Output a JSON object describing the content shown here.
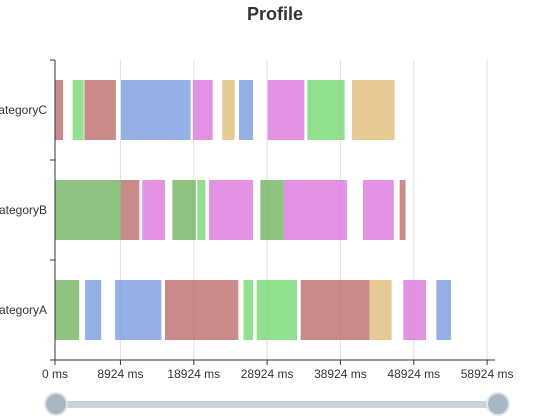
{
  "chart_data": {
    "type": "timeline",
    "title": "Profile",
    "xlabel": "",
    "ylabel": "",
    "xlim": [
      0,
      60000
    ],
    "x_ticks": [
      0,
      8924,
      18924,
      28924,
      38924,
      48924,
      58924
    ],
    "x_tick_labels": [
      "0 ms",
      "8924 ms",
      "18924 ms",
      "28924 ms",
      "38924 ms",
      "48924 ms",
      "58924 ms"
    ],
    "categories": [
      "categoryA",
      "categoryB",
      "categoryC"
    ],
    "colors": [
      "#7b9ce1",
      "#bd6d6c",
      "#75d874",
      "#e0bc78",
      "#dc77dc",
      "#72b362"
    ],
    "bars": [
      {
        "category": "categoryA",
        "start": 0,
        "end": 3300,
        "color": "#72b362"
      },
      {
        "category": "categoryA",
        "start": 4100,
        "end": 6300,
        "color": "#7b9ce1"
      },
      {
        "category": "categoryA",
        "start": 8200,
        "end": 14500,
        "color": "#7b9ce1"
      },
      {
        "category": "categoryA",
        "start": 15000,
        "end": 25000,
        "color": "#bd6d6c"
      },
      {
        "category": "categoryA",
        "start": 25700,
        "end": 27000,
        "color": "#75d874"
      },
      {
        "category": "categoryA",
        "start": 27500,
        "end": 33000,
        "color": "#75d874"
      },
      {
        "category": "categoryA",
        "start": 33500,
        "end": 42900,
        "color": "#bd6d6c"
      },
      {
        "category": "categoryA",
        "start": 42900,
        "end": 45900,
        "color": "#e0bc78"
      },
      {
        "category": "categoryA",
        "start": 47500,
        "end": 50600,
        "color": "#dc77dc"
      },
      {
        "category": "categoryA",
        "start": 52000,
        "end": 54000,
        "color": "#7b9ce1"
      },
      {
        "category": "categoryB",
        "start": 0,
        "end": 9000,
        "color": "#72b362"
      },
      {
        "category": "categoryB",
        "start": 9000,
        "end": 11500,
        "color": "#bd6d6c"
      },
      {
        "category": "categoryB",
        "start": 11900,
        "end": 15000,
        "color": "#dc77dc"
      },
      {
        "category": "categoryB",
        "start": 16000,
        "end": 19200,
        "color": "#72b362"
      },
      {
        "category": "categoryB",
        "start": 19400,
        "end": 20500,
        "color": "#75d874"
      },
      {
        "category": "categoryB",
        "start": 21000,
        "end": 27000,
        "color": "#dc77dc"
      },
      {
        "category": "categoryB",
        "start": 28000,
        "end": 31200,
        "color": "#72b362"
      },
      {
        "category": "categoryB",
        "start": 31200,
        "end": 39800,
        "color": "#dc77dc"
      },
      {
        "category": "categoryB",
        "start": 42000,
        "end": 46200,
        "color": "#dc77dc"
      },
      {
        "category": "categoryB",
        "start": 47000,
        "end": 47800,
        "color": "#bd6d6c"
      },
      {
        "category": "categoryC",
        "start": 0,
        "end": 1100,
        "color": "#bd6d6c"
      },
      {
        "category": "categoryC",
        "start": 2400,
        "end": 3900,
        "color": "#75d874"
      },
      {
        "category": "categoryC",
        "start": 4000,
        "end": 8300,
        "color": "#bd6d6c"
      },
      {
        "category": "categoryC",
        "start": 9000,
        "end": 18500,
        "color": "#7b9ce1"
      },
      {
        "category": "categoryC",
        "start": 18800,
        "end": 21500,
        "color": "#dc77dc"
      },
      {
        "category": "categoryC",
        "start": 22800,
        "end": 24500,
        "color": "#e0bc78"
      },
      {
        "category": "categoryC",
        "start": 25100,
        "end": 27000,
        "color": "#7b9ce1"
      },
      {
        "category": "categoryC",
        "start": 29000,
        "end": 34000,
        "color": "#dc77dc"
      },
      {
        "category": "categoryC",
        "start": 34400,
        "end": 39500,
        "color": "#75d874"
      },
      {
        "category": "categoryC",
        "start": 40500,
        "end": 46300,
        "color": "#e0bc78"
      }
    ],
    "grid": true,
    "legend": "none",
    "zoom_range": [
      0,
      1
    ]
  }
}
